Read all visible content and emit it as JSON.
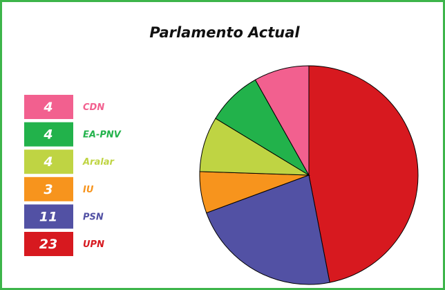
{
  "chart_data": {
    "type": "pie",
    "title": "Parlamento Actual",
    "categories": [
      "CDN",
      "EA-PNV",
      "Aralar",
      "IU",
      "PSN",
      "UPN"
    ],
    "values": [
      4,
      4,
      4,
      3,
      11,
      23
    ],
    "colors": [
      "#f2608f",
      "#22b24b",
      "#bfd443",
      "#f7941d",
      "#5251a4",
      "#d7191f"
    ]
  }
}
